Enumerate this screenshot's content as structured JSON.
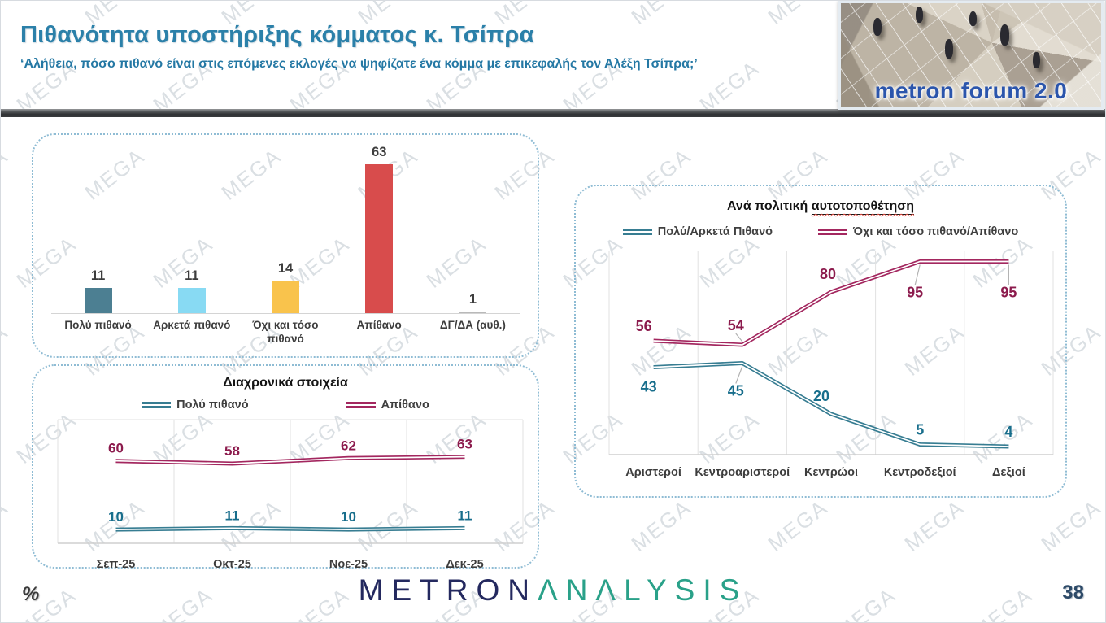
{
  "header": {
    "title": "Πιθανότητα υποστήριξης κόμματος κ. Τσίπρα",
    "subtitle": "‘Αλήθεια, πόσο πιθανό είναι στις επόμενες εκλογές να ψηφίζατε ένα κόμμα με επικεφαλής τον Αλέξη Τσίπρα;’",
    "logo_text": "metron forum 2.0"
  },
  "footer": {
    "unit_label": "%",
    "brand_metron": "METRON",
    "brand_analysis": "ΛNΛLYSIS",
    "page_number": "38"
  },
  "watermark_text": "MEGA",
  "colors": {
    "title_blue": "#2b80a9",
    "panel_border": "#8fbcd4",
    "teal_line": "#377d92",
    "maroon_line": "#a3275f",
    "teal_label": "#186e8c",
    "maroon_label": "#8c1b4d"
  },
  "chart_data": [
    {
      "type": "bar",
      "title": "",
      "categories": [
        "Πολύ πιθανό",
        "Αρκετά πιθανό",
        "Όχι και τόσο πιθανό",
        "Απίθανο",
        "ΔΓ/ΔΑ (αυθ.)"
      ],
      "values": [
        11,
        11,
        14,
        63,
        1
      ],
      "bar_colors": [
        "#4c7f92",
        "#88daf3",
        "#f9c34c",
        "#d84c4c",
        "#b9b9b9"
      ],
      "ylim": [
        0,
        70
      ],
      "value_label_color": "#3d3d3d"
    },
    {
      "type": "line",
      "title": "Διαχρονικά στοιχεία",
      "categories": [
        "Σεπ-25",
        "Οκτ-25",
        "Νοε-25",
        "Δεκ-25"
      ],
      "series": [
        {
          "name": "Πολύ πιθανό",
          "color": "#377d92",
          "label_color": "#186e8c",
          "values": [
            10,
            11,
            10,
            11
          ]
        },
        {
          "name": "Απίθανο",
          "color": "#a3275f",
          "label_color": "#8c1b4d",
          "values": [
            60,
            58,
            62,
            63
          ]
        }
      ],
      "ylim": [
        0,
        90
      ],
      "legend_position": "top",
      "grid": "vertical"
    },
    {
      "type": "line",
      "title": "Ανά πολιτική αυτοτοποθέτηση",
      "title_underlined": "αυτοτοποθέτηση",
      "categories": [
        "Αριστεροί",
        "Κεντροαριστεροί",
        "Κεντρώοι",
        "Κεντροδεξιοί",
        "Δεξιοί"
      ],
      "series": [
        {
          "name": "Πολύ/Αρκετά Πιθανό",
          "color": "#377d92",
          "label_color": "#186e8c",
          "values": [
            43,
            45,
            20,
            5,
            4
          ]
        },
        {
          "name": "Όχι και τόσο πιθανό/Απίθανο",
          "color": "#a3275f",
          "label_color": "#8c1b4d",
          "values": [
            56,
            54,
            80,
            95,
            95
          ]
        }
      ],
      "ylim": [
        0,
        100
      ],
      "legend_position": "top",
      "grid": "vertical"
    }
  ]
}
